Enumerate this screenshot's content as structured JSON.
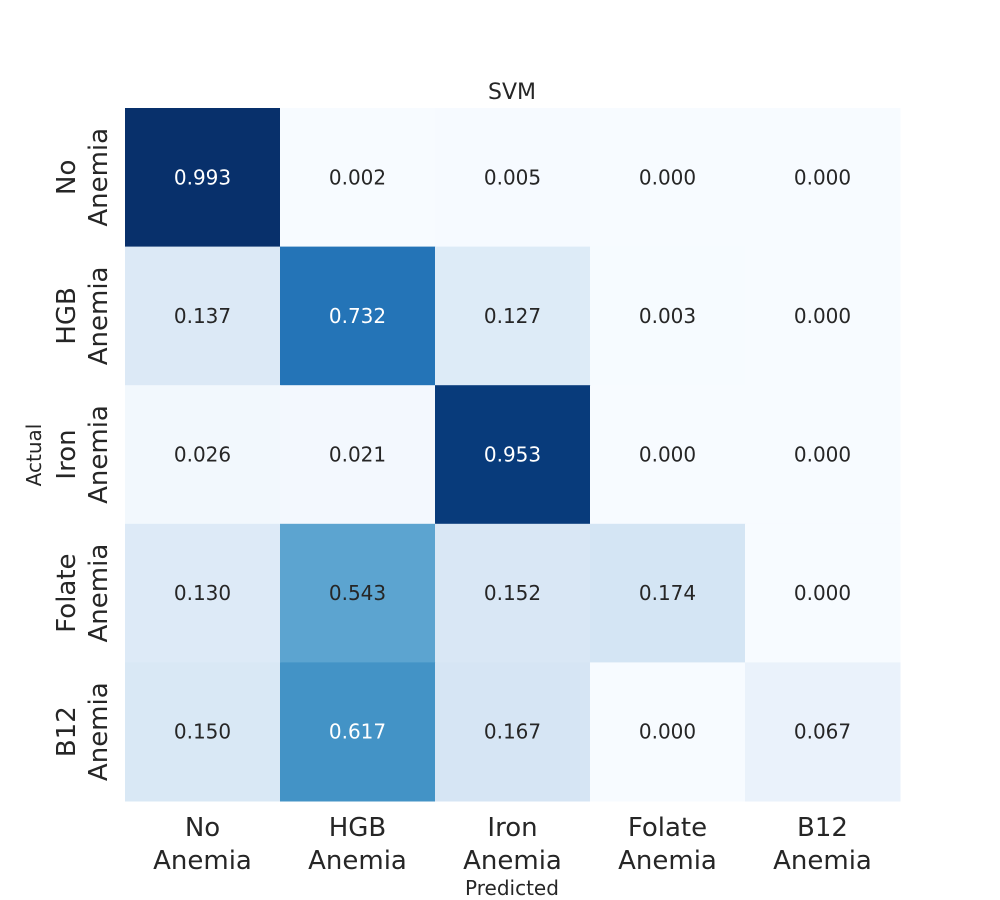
{
  "chart_data": {
    "type": "heatmap",
    "title": "SVM",
    "xlabel": "Predicted",
    "ylabel": "Actual",
    "x_categories": [
      [
        "No",
        "Anemia"
      ],
      [
        "HGB",
        "Anemia"
      ],
      [
        "Iron",
        "Anemia"
      ],
      [
        "Folate",
        "Anemia"
      ],
      [
        "B12",
        "Anemia"
      ]
    ],
    "y_categories": [
      [
        "No",
        "Anemia"
      ],
      [
        "HGB",
        "Anemia"
      ],
      [
        "Iron",
        "Anemia"
      ],
      [
        "Folate",
        "Anemia"
      ],
      [
        "B12",
        "Anemia"
      ]
    ],
    "values": [
      [
        0.993,
        0.002,
        0.005,
        0.0,
        0.0
      ],
      [
        0.137,
        0.732,
        0.127,
        0.003,
        0.0
      ],
      [
        0.026,
        0.021,
        0.953,
        0.0,
        0.0
      ],
      [
        0.13,
        0.543,
        0.152,
        0.174,
        0.0
      ],
      [
        0.15,
        0.617,
        0.167,
        0.0,
        0.067
      ]
    ],
    "value_format": "0.000",
    "colormap": "Blues",
    "colorbar": false,
    "grid": false
  }
}
